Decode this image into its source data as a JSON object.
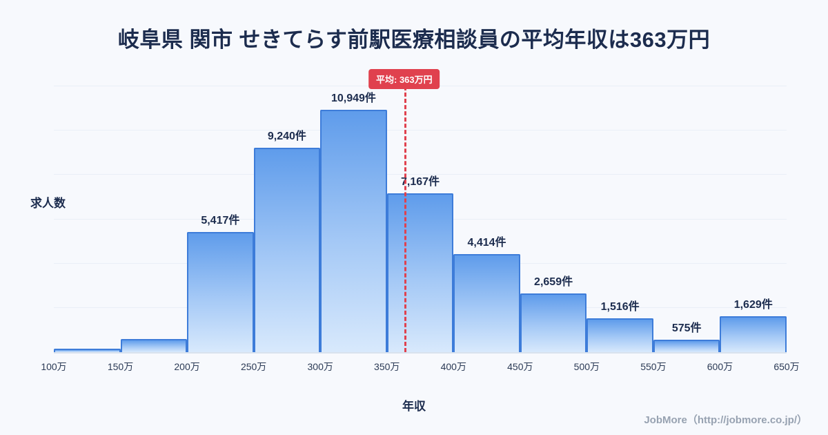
{
  "title": "岐阜県 関市 せきてらす前駅医療相談員の平均年収は363万円",
  "chart_data": {
    "type": "bar",
    "title": "岐阜県 関市 せきてらす前駅医療相談員の平均年収は363万円",
    "xlabel": "年収",
    "ylabel": "求人数",
    "x_tick_labels": [
      "100万",
      "150万",
      "200万",
      "250万",
      "300万",
      "350万",
      "400万",
      "450万",
      "500万",
      "550万",
      "600万",
      "650万"
    ],
    "x_range": [
      100,
      650
    ],
    "ylim": [
      0,
      12000
    ],
    "grid": true,
    "legend": false,
    "bins": [
      {
        "from": 100,
        "to": 150,
        "value": 150,
        "label": ""
      },
      {
        "from": 150,
        "to": 200,
        "value": 580,
        "label": ""
      },
      {
        "from": 200,
        "to": 250,
        "value": 5417,
        "label": "5,417件"
      },
      {
        "from": 250,
        "to": 300,
        "value": 9240,
        "label": "9,240件"
      },
      {
        "from": 300,
        "to": 350,
        "value": 10949,
        "label": "10,949件"
      },
      {
        "from": 350,
        "to": 400,
        "value": 7167,
        "label": "7,167件"
      },
      {
        "from": 400,
        "to": 450,
        "value": 4414,
        "label": "4,414件"
      },
      {
        "from": 450,
        "to": 500,
        "value": 2659,
        "label": "2,659件"
      },
      {
        "from": 500,
        "to": 550,
        "value": 1516,
        "label": "1,516件"
      },
      {
        "from": 550,
        "to": 600,
        "value": 575,
        "label": "575件"
      },
      {
        "from": 600,
        "to": 650,
        "value": 1629,
        "label": "1,629件"
      }
    ],
    "average": {
      "value": 363,
      "badge_label": "平均: 363万円"
    },
    "colors": {
      "background": "#f7f9fd",
      "bar_border": "#3d7cd9",
      "bar_top": "#5f9ceb",
      "bar_mid": "#a5c9f6",
      "bar_bottom": "#d8e9fc",
      "average_red": "#e0414e",
      "title_text": "#1c2c4e",
      "gridline": "#e9eff7"
    }
  },
  "footer": {
    "credit": "JobMore（http://jobmore.co.jp/）"
  }
}
